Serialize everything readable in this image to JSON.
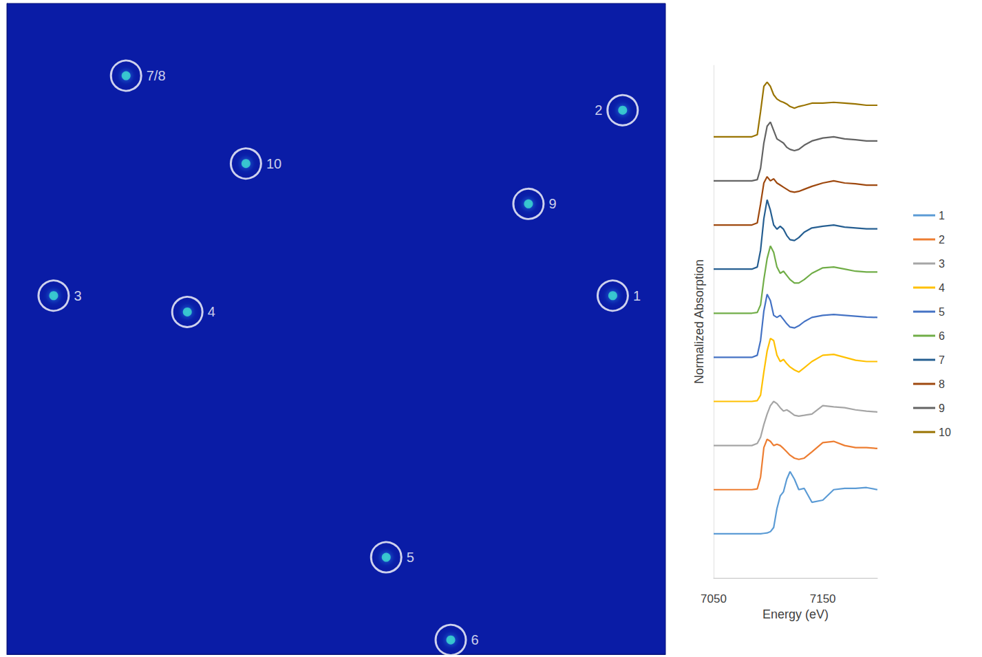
{
  "chart_data": [
    {
      "type": "scatter",
      "labels": [
        "1",
        "2",
        "3",
        "4",
        "5",
        "6",
        "7/8",
        "9",
        "10"
      ],
      "x": [
        92.0,
        93.5,
        7.1,
        27.4,
        57.6,
        67.4,
        18.1,
        79.2,
        36.3
      ],
      "y": [
        55.1,
        83.6,
        55.1,
        52.6,
        14.9,
        2.2,
        88.9,
        69.2,
        75.4
      ],
      "xlim": [
        0,
        100
      ],
      "ylim": [
        0,
        100
      ],
      "tick_labels": false,
      "grid": false,
      "marker": "circle"
    },
    {
      "type": "line",
      "x_label": "Energy (eV)",
      "y_label": "Normalized Absorption",
      "x": [
        7050,
        7070,
        7085,
        7090,
        7093,
        7096,
        7099,
        7102,
        7105,
        7108,
        7111,
        7114,
        7117,
        7120,
        7124,
        7128,
        7133,
        7140,
        7150,
        7160,
        7170,
        7180,
        7190,
        7200
      ],
      "xlim": [
        7050,
        7200
      ],
      "xticks": [
        7050,
        7150
      ],
      "ylim": [
        0,
        12.2
      ],
      "tick_labels": "x",
      "grid": false,
      "legend": "right",
      "series": [
        {
          "name": "1",
          "color": "#5b9bd5",
          "values": [
            1.05,
            1.05,
            1.05,
            1.05,
            1.05,
            1.06,
            1.07,
            1.1,
            1.2,
            1.65,
            1.95,
            2.05,
            2.35,
            2.53,
            2.35,
            2.1,
            2.13,
            1.8,
            1.85,
            2.1,
            2.13,
            2.13,
            2.15,
            2.1
          ]
        },
        {
          "name": "2",
          "color": "#ed7d31",
          "values": [
            2.1,
            2.1,
            2.1,
            2.12,
            2.4,
            3.1,
            3.3,
            3.25,
            3.15,
            3.18,
            3.15,
            3.08,
            3.0,
            2.92,
            2.85,
            2.82,
            2.85,
            3.0,
            3.22,
            3.25,
            3.15,
            3.1,
            3.1,
            3.08
          ]
        },
        {
          "name": "3",
          "color": "#a5a5a5",
          "values": [
            3.15,
            3.15,
            3.15,
            3.2,
            3.35,
            3.65,
            3.9,
            4.1,
            4.2,
            4.15,
            4.05,
            3.97,
            4.0,
            3.95,
            3.87,
            3.85,
            3.87,
            3.9,
            4.1,
            4.07,
            4.05,
            4.0,
            3.97,
            3.95
          ]
        },
        {
          "name": "4",
          "color": "#ffc000",
          "values": [
            4.2,
            4.2,
            4.2,
            4.22,
            4.35,
            4.9,
            5.4,
            5.7,
            5.65,
            5.3,
            5.15,
            5.2,
            5.1,
            5.02,
            4.95,
            4.9,
            5.0,
            5.15,
            5.3,
            5.32,
            5.25,
            5.18,
            5.15,
            5.15
          ]
        },
        {
          "name": "5",
          "color": "#4472c4",
          "values": [
            5.25,
            5.25,
            5.25,
            5.3,
            5.65,
            6.35,
            6.75,
            6.6,
            6.25,
            6.2,
            6.25,
            6.15,
            6.05,
            5.97,
            5.95,
            6.0,
            6.1,
            6.2,
            6.25,
            6.27,
            6.25,
            6.23,
            6.21,
            6.2
          ]
        },
        {
          "name": "6",
          "color": "#70ad47",
          "values": [
            6.3,
            6.3,
            6.3,
            6.32,
            6.5,
            7.1,
            7.6,
            7.9,
            7.75,
            7.4,
            7.25,
            7.3,
            7.2,
            7.1,
            7.02,
            7.02,
            7.1,
            7.25,
            7.38,
            7.4,
            7.35,
            7.3,
            7.28,
            7.28
          ]
        },
        {
          "name": "7",
          "color": "#255e91",
          "values": [
            7.35,
            7.35,
            7.35,
            7.4,
            7.8,
            8.55,
            9.0,
            8.75,
            8.4,
            8.3,
            8.37,
            8.3,
            8.15,
            8.05,
            8.03,
            8.1,
            8.23,
            8.33,
            8.37,
            8.4,
            8.35,
            8.33,
            8.31,
            8.31
          ]
        },
        {
          "name": "8",
          "color": "#9e480e",
          "values": [
            8.4,
            8.4,
            8.4,
            8.45,
            8.9,
            9.4,
            9.55,
            9.45,
            9.5,
            9.4,
            9.35,
            9.3,
            9.25,
            9.2,
            9.18,
            9.2,
            9.25,
            9.32,
            9.4,
            9.45,
            9.4,
            9.38,
            9.35,
            9.35
          ]
        },
        {
          "name": "9",
          "color": "#636363",
          "values": [
            9.45,
            9.45,
            9.45,
            9.48,
            9.75,
            10.35,
            10.75,
            10.85,
            10.65,
            10.45,
            10.4,
            10.35,
            10.25,
            10.2,
            10.17,
            10.2,
            10.3,
            10.4,
            10.47,
            10.5,
            10.45,
            10.43,
            10.4,
            10.4
          ]
        },
        {
          "name": "10",
          "color": "#997300",
          "values": [
            10.5,
            10.5,
            10.5,
            10.55,
            11.1,
            11.7,
            11.8,
            11.7,
            11.5,
            11.4,
            11.35,
            11.32,
            11.28,
            11.22,
            11.18,
            11.22,
            11.25,
            11.3,
            11.3,
            11.32,
            11.3,
            11.28,
            11.25,
            11.25
          ]
        }
      ]
    }
  ]
}
